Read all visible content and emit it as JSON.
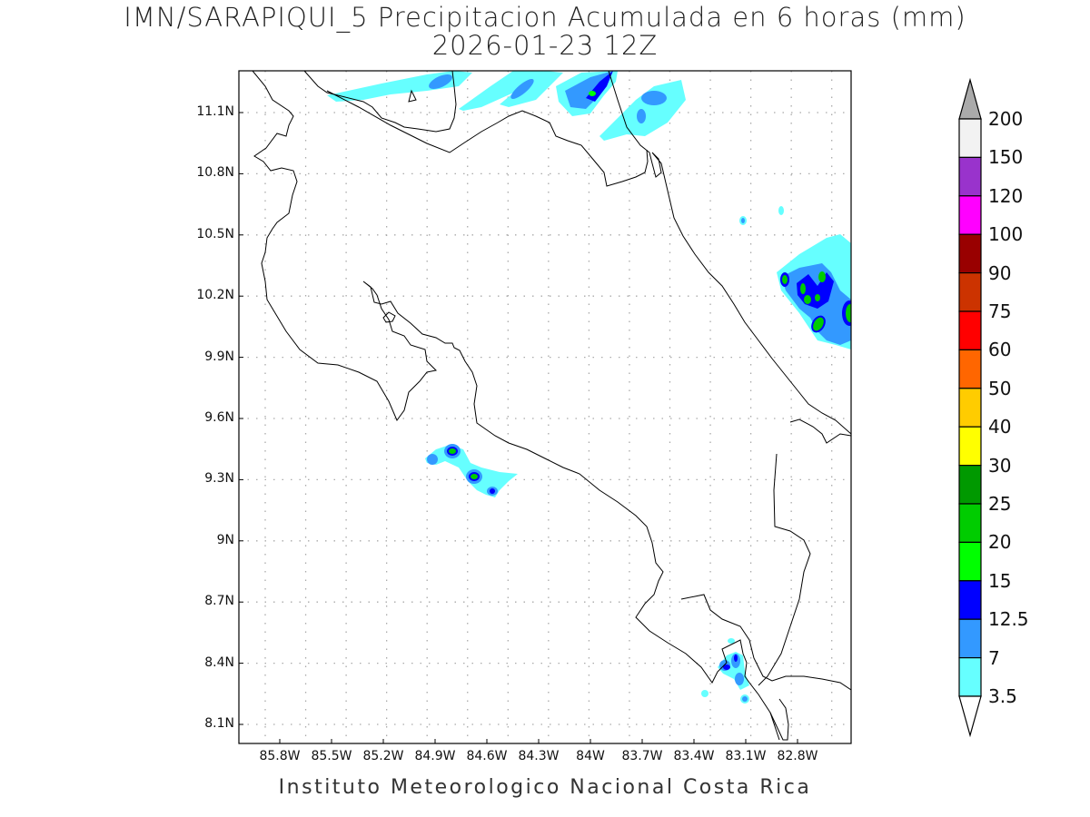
{
  "title": {
    "line1": "IMN/SARAPIQUI_5 Precipitacion Acumulada en 6 horas (mm)",
    "line2": "2026-01-23 12Z"
  },
  "footer": "Instituto Meteorologico Nacional Costa Rica",
  "lat_labels": [
    "11.1N",
    "10.8N",
    "10.5N",
    "10.2N",
    "9.9N",
    "9.6N",
    "9.3N",
    "9N",
    "8.7N",
    "8.4N",
    "8.1N"
  ],
  "lon_labels": [
    "85.8W",
    "85.5W",
    "85.2W",
    "84.9W",
    "84.6W",
    "84.3W",
    "84W",
    "83.7W",
    "83.4W",
    "83.1W",
    "82.8W"
  ],
  "colorbar": {
    "labels": [
      "200",
      "150",
      "120",
      "100",
      "90",
      "75",
      "60",
      "50",
      "40",
      "30",
      "25",
      "20",
      "15",
      "12.5",
      "7",
      "3.5"
    ],
    "colors": [
      "#f2f2f2",
      "#9933cc",
      "#ff00ff",
      "#990000",
      "#cc3300",
      "#ff0000",
      "#ff6600",
      "#ffcc00",
      "#ffff00",
      "#009900",
      "#00cc00",
      "#00ff00",
      "#0000ff",
      "#3399ff",
      "#66ffff"
    ],
    "over_color": "#aaaaaa",
    "under_color": "#ffffff"
  }
}
